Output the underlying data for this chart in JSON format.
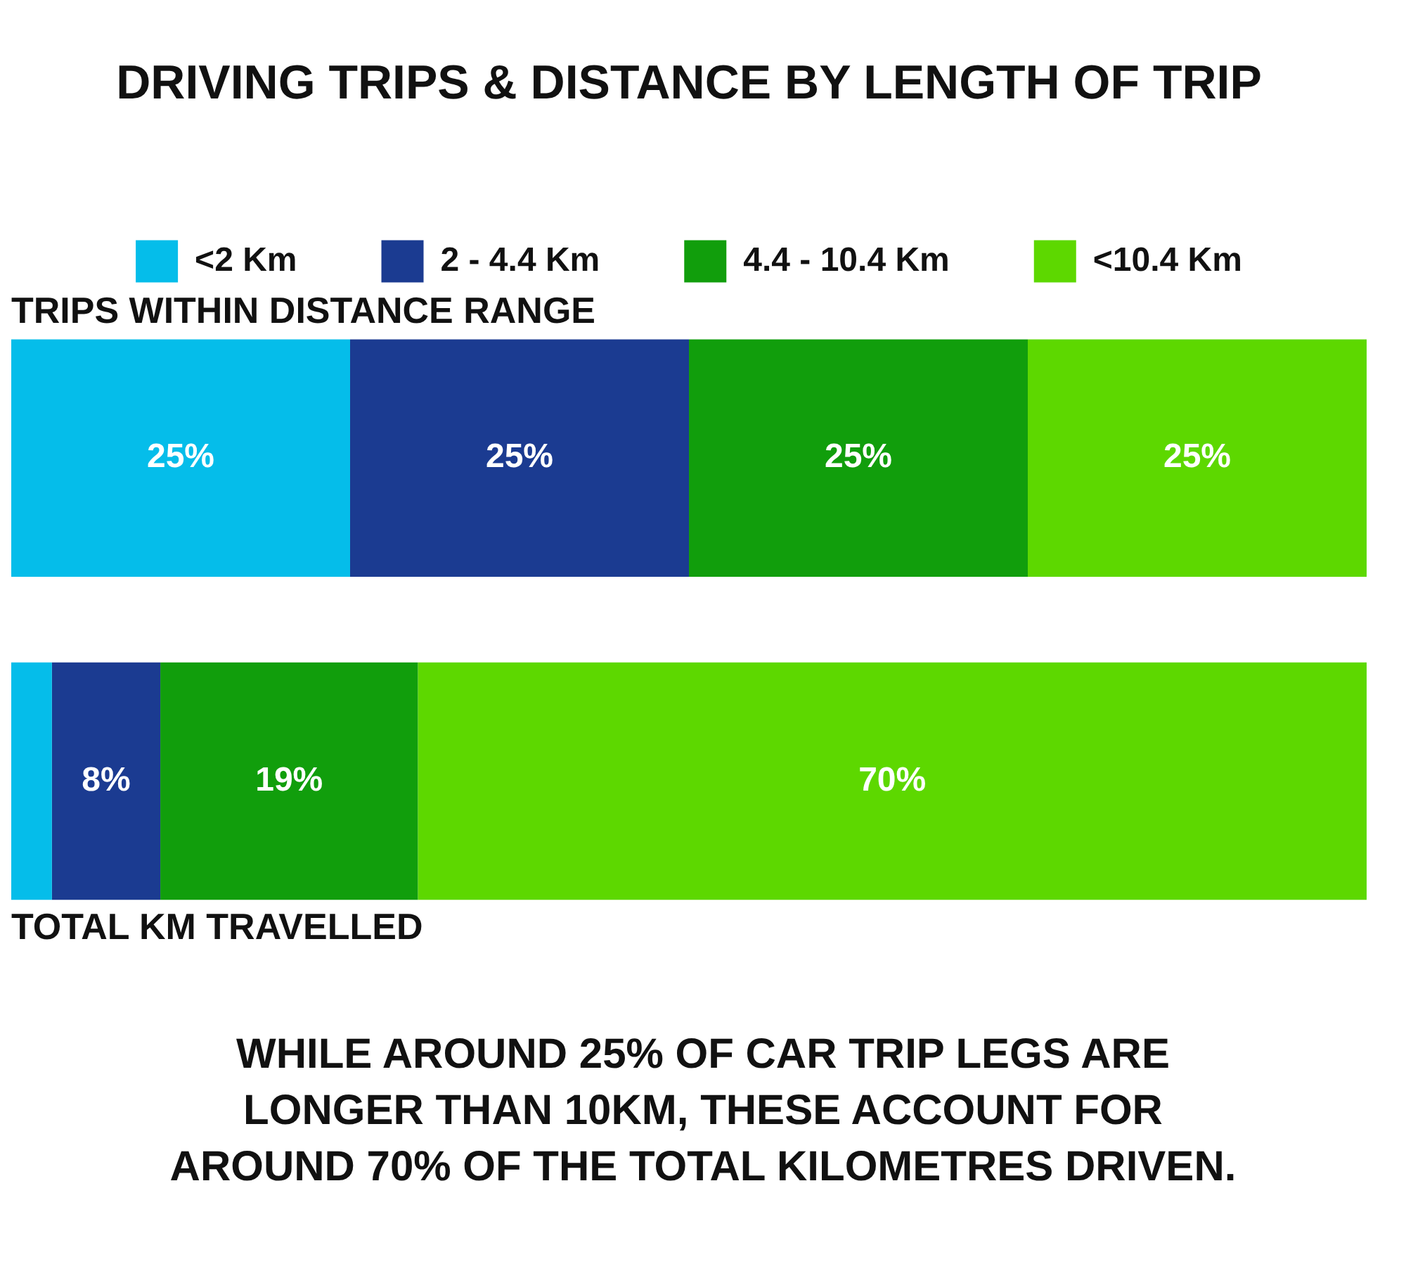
{
  "chart_data": {
    "type": "bar",
    "orientation": "horizontal",
    "stacked": true,
    "title": "DRIVING TRIPS & DISTANCE BY LENGTH OF TRIP",
    "categories": [
      "TRIPS WITHIN DISTANCE RANGE",
      "TOTAL KM TRAVELLED"
    ],
    "series": [
      {
        "name": "<2 Km",
        "color": "#05bdea",
        "values": [
          25,
          3
        ],
        "value_labels": [
          "25%",
          null
        ]
      },
      {
        "name": "2 - 4.4 Km",
        "color": "#1b3b91",
        "values": [
          25,
          8
        ],
        "value_labels": [
          "25%",
          "8%"
        ]
      },
      {
        "name": "4.4 - 10.4 Km",
        "color": "#119e0c",
        "values": [
          25,
          19
        ],
        "value_labels": [
          "25%",
          "19%"
        ]
      },
      {
        "name": "<10.4 Km",
        "color": "#5dd800",
        "values": [
          25,
          70
        ],
        "value_labels": [
          "25%",
          "70%"
        ]
      }
    ],
    "xlim": [
      0,
      100
    ],
    "tick_labels": false,
    "legend": "top",
    "annotations": [
      "WHILE AROUND 25% OF CAR TRIP LEGS ARE LONGER THAN 10KM, THESE ACCOUNT FOR AROUND 70% OF THE TOTAL KILOMETRES DRIVEN."
    ]
  }
}
